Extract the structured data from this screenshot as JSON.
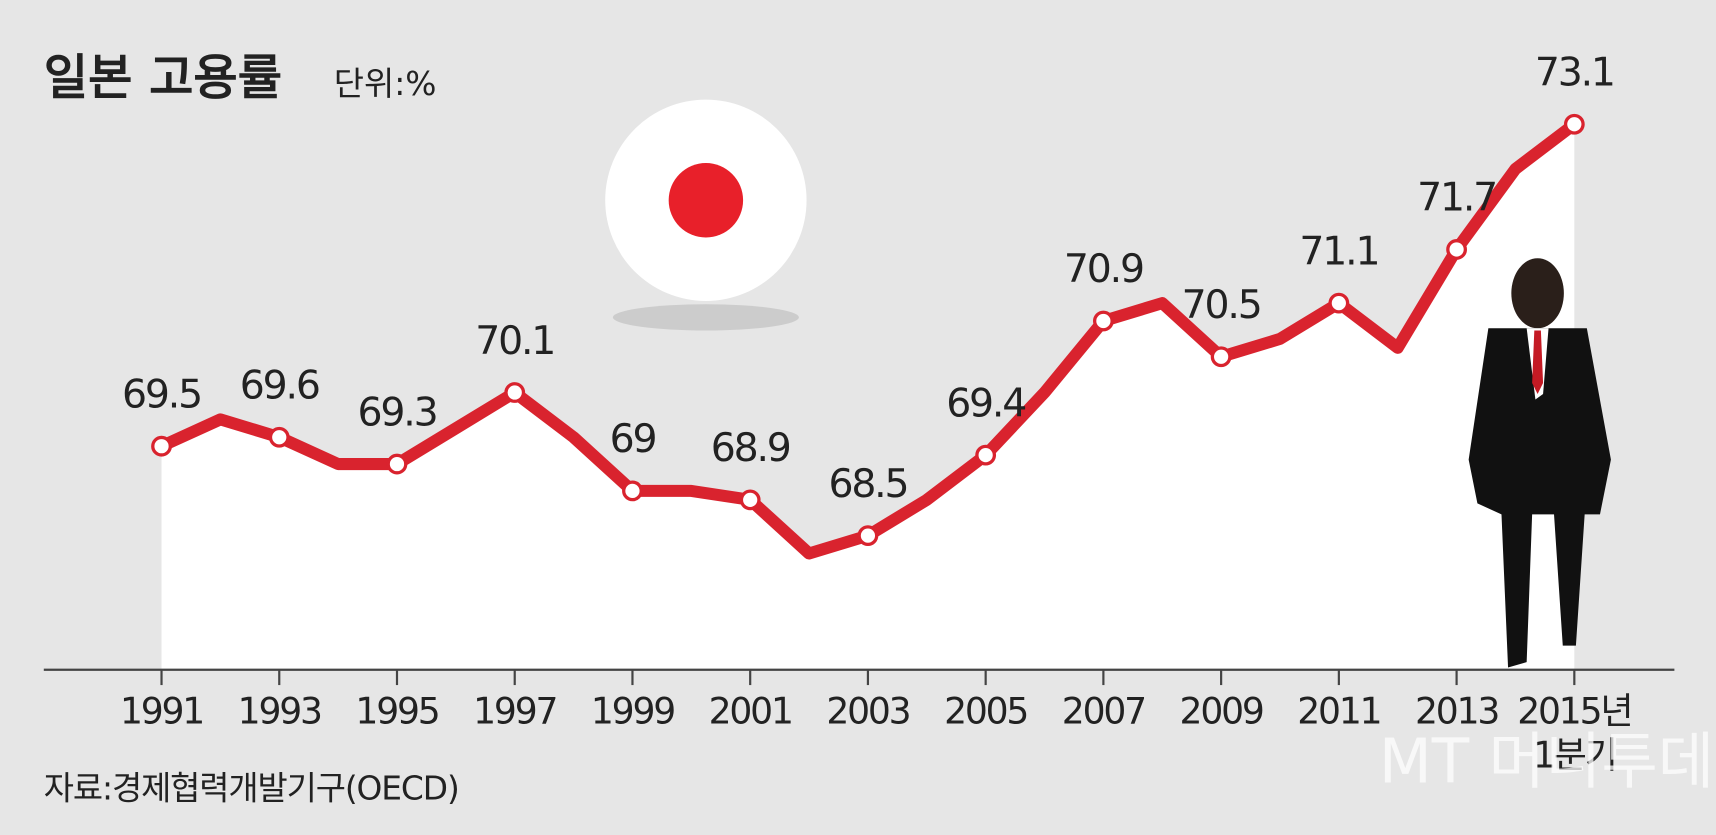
{
  "chart_data": {
    "type": "line",
    "title": "일본 고용률",
    "unit": "단위:%",
    "x": [
      1991,
      1992,
      1993,
      1994,
      1995,
      1996,
      1997,
      1998,
      1999,
      2000,
      2001,
      2002,
      2003,
      2004,
      2005,
      2006,
      2007,
      2008,
      2009,
      2010,
      2011,
      2012,
      2013,
      2014,
      2015
    ],
    "series": [
      {
        "name": "고용률",
        "color": "#d9232e",
        "values": [
          69.5,
          69.8,
          69.6,
          69.3,
          69.3,
          69.7,
          70.1,
          69.6,
          69,
          69.0,
          68.9,
          68.3,
          68.5,
          68.9,
          69.4,
          70.1,
          70.9,
          71.1,
          70.5,
          70.7,
          71.1,
          70.6,
          71.7,
          72.6,
          73.1
        ]
      }
    ],
    "xlim": [
      1989,
      2016.7
    ],
    "xticks": [
      1991,
      1993,
      1995,
      1997,
      1999,
      2001,
      2003,
      2005,
      2007,
      2009,
      2011,
      2013,
      {
        "value": 2015,
        "label": "2015년"
      }
    ],
    "ylim": [
      67,
      74
    ],
    "x_note": "1분기",
    "source": "자료:경제협력개발기구(OECD)",
    "watermark": "MT 머니투데이"
  }
}
